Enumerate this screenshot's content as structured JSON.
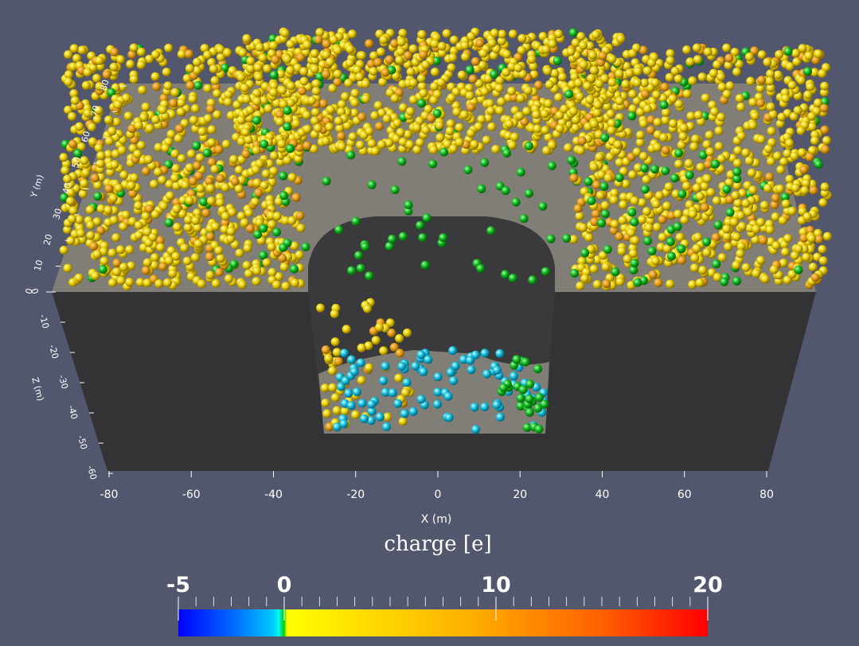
{
  "x_axis": {
    "label": "X (m)",
    "ticks": [
      -80,
      -60,
      -40,
      -20,
      0,
      20,
      40,
      60,
      80
    ]
  },
  "y_axis": {
    "label": "Y (m)",
    "ticks": [
      0,
      10,
      20,
      30,
      40,
      50,
      60,
      70,
      80
    ]
  },
  "z_axis": {
    "label": "Z (m)",
    "ticks": [
      0,
      -10,
      -20,
      -30,
      -40,
      -50,
      -60
    ]
  },
  "colorbar": {
    "title": "charge [e]",
    "range": [
      -5,
      20
    ],
    "ticks": [
      -5,
      0,
      10,
      20
    ]
  }
}
